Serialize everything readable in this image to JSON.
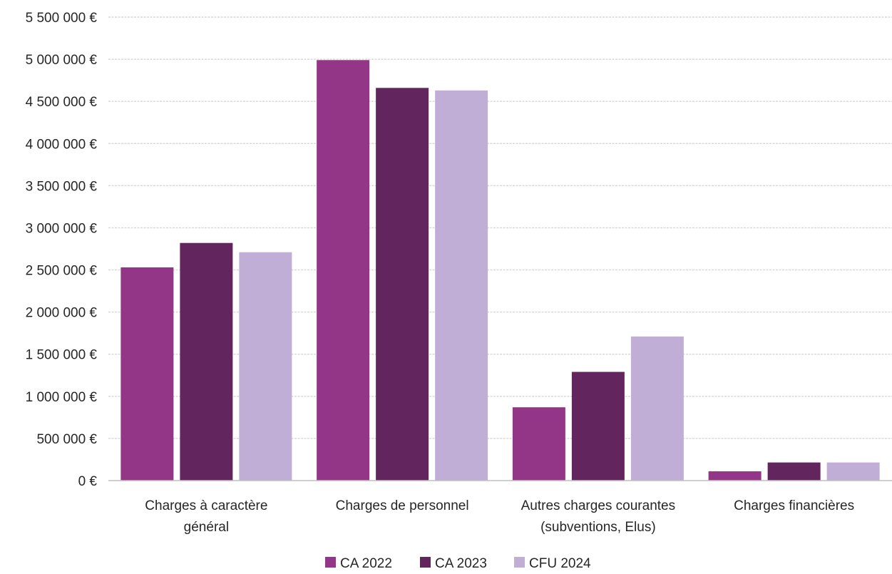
{
  "chart_data": {
    "type": "bar",
    "categories": [
      [
        "Charges à caractère",
        "général"
      ],
      [
        "Charges de personnel"
      ],
      [
        "Autres charges courantes",
        "(subventions, Elus)"
      ],
      [
        "Charges financières"
      ]
    ],
    "series": [
      {
        "name": "CA 2022",
        "color": "#943688",
        "values": [
          2530000,
          4990000,
          870000,
          110000
        ]
      },
      {
        "name": "CA 2023",
        "color": "#63255E",
        "values": [
          2820000,
          4660000,
          1290000,
          215000
        ]
      },
      {
        "name": "CFU 2024",
        "color": "#C1AED6",
        "values": [
          2710000,
          4630000,
          1710000,
          215000
        ]
      }
    ],
    "ylim": [
      0,
      5500000
    ],
    "ytick_labels": [
      "0 €",
      "500 000 €",
      "1 000 000 €",
      "1 500 000 €",
      "2 000 000 €",
      "2 500 000 €",
      "3 000 000 €",
      "3 500 000 €",
      "4 000 000 €",
      "4 500 000 €",
      "5 000 000 €",
      "5 500 000 €"
    ],
    "grid": true,
    "legend": "bottom"
  }
}
